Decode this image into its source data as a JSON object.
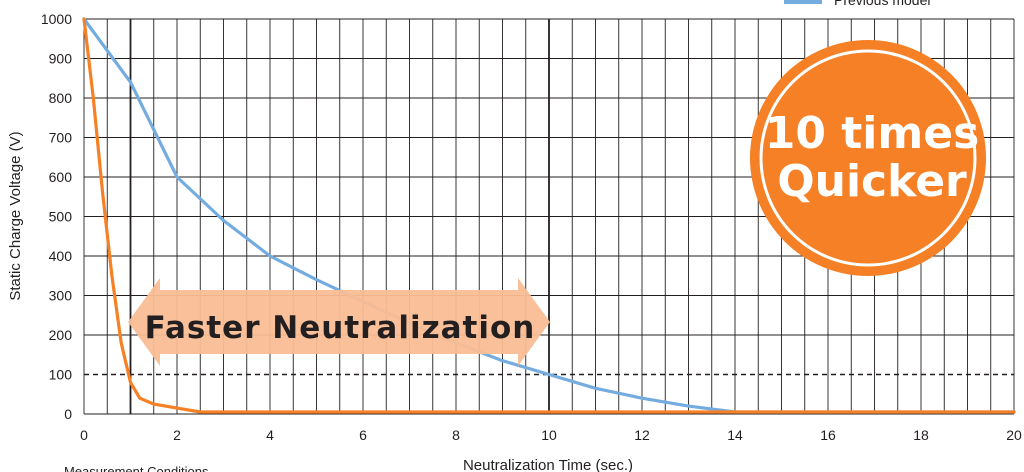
{
  "chart_data": {
    "type": "line",
    "xlabel": "Neutralization Time (sec.)",
    "ylabel": "Static Charge Voltage (V)",
    "xlim": [
      0,
      20
    ],
    "ylim": [
      0,
      1000
    ],
    "x_ticks": [
      0,
      2,
      4,
      6,
      8,
      10,
      12,
      14,
      16,
      18,
      20
    ],
    "y_ticks": [
      0,
      100,
      200,
      300,
      400,
      500,
      600,
      700,
      800,
      900,
      1000
    ],
    "grid": true,
    "legend_position": "top-right",
    "series": [
      {
        "name": "",
        "color": "#f58025",
        "points": [
          [
            0,
            1000
          ],
          [
            0.2,
            800
          ],
          [
            0.4,
            560
          ],
          [
            0.6,
            350
          ],
          [
            0.8,
            180
          ],
          [
            1.0,
            80
          ],
          [
            1.2,
            40
          ],
          [
            1.5,
            25
          ],
          [
            2.0,
            15
          ],
          [
            2.5,
            5
          ],
          [
            20,
            5
          ]
        ]
      },
      {
        "name": "Previous model",
        "color": "#74ace0",
        "points": [
          [
            0,
            1000
          ],
          [
            1,
            840
          ],
          [
            2,
            600
          ],
          [
            3,
            490
          ],
          [
            4,
            400
          ],
          [
            5,
            340
          ],
          [
            6,
            285
          ],
          [
            7,
            230
          ],
          [
            8,
            180
          ],
          [
            9,
            135
          ],
          [
            10,
            100
          ],
          [
            11,
            65
          ],
          [
            12,
            40
          ],
          [
            13,
            20
          ],
          [
            14,
            5
          ],
          [
            15,
            5
          ],
          [
            20,
            5
          ]
        ]
      }
    ],
    "reference_lines": [
      {
        "axis": "y",
        "value": 100,
        "style": "dashed"
      },
      {
        "axis": "x",
        "value": 1,
        "style": "bold"
      },
      {
        "axis": "x",
        "value": 10,
        "style": "bold"
      }
    ],
    "annotations": {
      "arrow_label": "Faster Neutralization",
      "badge_line1": "10 times",
      "badge_line2": "Quicker",
      "footnote": "Measurement Conditions"
    },
    "colors": {
      "orange": "#f58025",
      "blue": "#74ace0",
      "arrow_fill": "#f9bd93"
    }
  }
}
